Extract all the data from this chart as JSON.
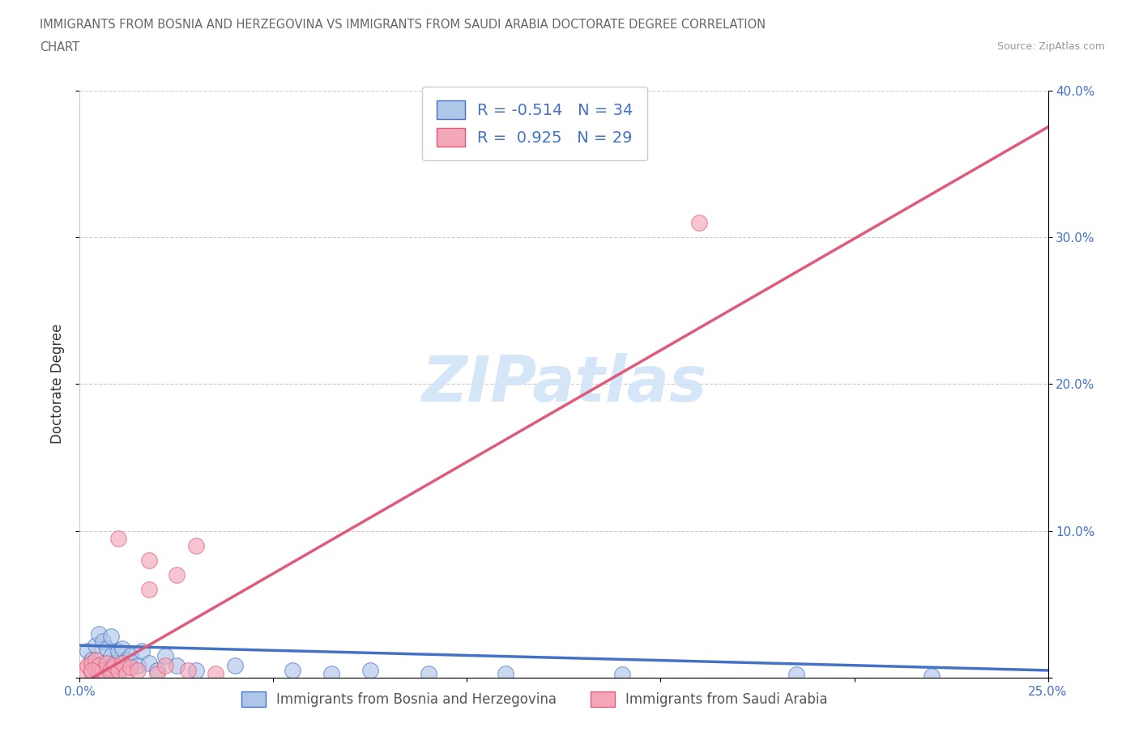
{
  "title_line1": "IMMIGRANTS FROM BOSNIA AND HERZEGOVINA VS IMMIGRANTS FROM SAUDI ARABIA DOCTORATE DEGREE CORRELATION",
  "title_line2": "CHART",
  "source": "Source: ZipAtlas.com",
  "ylabel": "Doctorate Degree",
  "xlim": [
    0.0,
    0.25
  ],
  "ylim": [
    0.0,
    0.4
  ],
  "bosnia_R": -0.514,
  "bosnia_N": 34,
  "saudi_R": 0.925,
  "saudi_N": 29,
  "bosnia_color": "#aec6e8",
  "bosnia_line_color": "#4472c4",
  "saudi_color": "#f4a7b9",
  "saudi_line_color": "#e05a7a",
  "watermark_color": "#d0e4f7",
  "background_color": "#ffffff",
  "grid_color": "#cccccc",
  "right_axis_color": "#4472c4",
  "title_color": "#666666",
  "source_color": "#999999",
  "legend_text_color": "#4472c4",
  "bottom_legend_color": "#555555",
  "bosnia_x": [
    0.002,
    0.003,
    0.004,
    0.004,
    0.005,
    0.005,
    0.006,
    0.006,
    0.007,
    0.007,
    0.008,
    0.008,
    0.009,
    0.01,
    0.01,
    0.011,
    0.012,
    0.013,
    0.015,
    0.016,
    0.018,
    0.02,
    0.022,
    0.025,
    0.03,
    0.04,
    0.055,
    0.065,
    0.075,
    0.09,
    0.11,
    0.14,
    0.185,
    0.22
  ],
  "bosnia_y": [
    0.018,
    0.012,
    0.022,
    0.008,
    0.03,
    0.005,
    0.025,
    0.01,
    0.02,
    0.006,
    0.015,
    0.028,
    0.01,
    0.018,
    0.003,
    0.02,
    0.012,
    0.015,
    0.008,
    0.018,
    0.01,
    0.005,
    0.015,
    0.008,
    0.005,
    0.008,
    0.005,
    0.003,
    0.005,
    0.003,
    0.003,
    0.002,
    0.002,
    0.001
  ],
  "saudi_x": [
    0.001,
    0.002,
    0.003,
    0.003,
    0.004,
    0.004,
    0.005,
    0.005,
    0.006,
    0.007,
    0.008,
    0.008,
    0.009,
    0.01,
    0.011,
    0.012,
    0.013,
    0.015,
    0.018,
    0.02,
    0.022,
    0.025,
    0.028,
    0.03,
    0.035,
    0.01,
    0.018,
    0.16,
    0.003
  ],
  "saudi_y": [
    0.005,
    0.008,
    0.004,
    0.01,
    0.006,
    0.012,
    0.003,
    0.008,
    0.005,
    0.01,
    0.006,
    0.003,
    0.008,
    0.005,
    0.01,
    0.003,
    0.007,
    0.005,
    0.06,
    0.003,
    0.008,
    0.07,
    0.005,
    0.09,
    0.003,
    0.095,
    0.08,
    0.31,
    0.005
  ],
  "bosnia_trend_x": [
    0.0,
    0.25
  ],
  "bosnia_trend_y": [
    0.022,
    0.005
  ],
  "saudi_trend_x": [
    0.0,
    0.25
  ],
  "saudi_trend_y": [
    -0.005,
    0.375
  ]
}
